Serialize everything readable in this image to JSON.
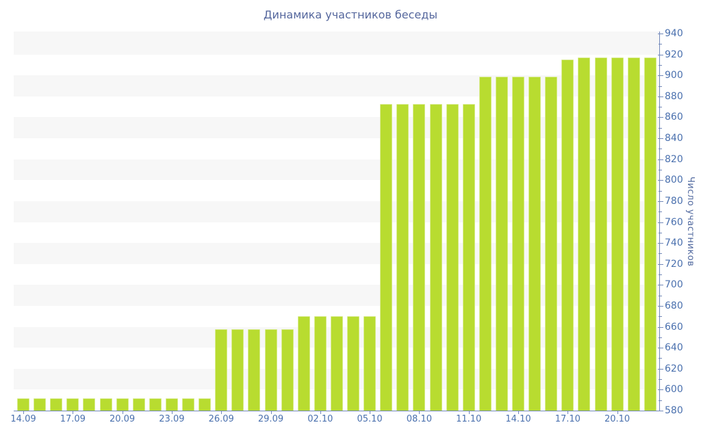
{
  "title": "Динамика участников беседы",
  "colors": {
    "bar_fill": "#b8dc30",
    "band": "#f7f7f7",
    "axis_line": "#7288b9",
    "tick_text": "#4a70ae",
    "title_text": "#55679d"
  },
  "chart_data": {
    "type": "bar",
    "title": "Динамика участников беседы",
    "xlabel": "",
    "ylabel": "Число участников",
    "ylim": [
      580,
      940
    ],
    "y_major_step": 20,
    "y_minor_step": 10,
    "grid": "horizontal-bands",
    "y_axis_position": "right",
    "legend": null,
    "categories": [
      "14.09",
      "15.09",
      "16.09",
      "17.09",
      "18.09",
      "19.09",
      "20.09",
      "21.09",
      "22.09",
      "23.09",
      "24.09",
      "25.09",
      "26.09",
      "27.09",
      "28.09",
      "29.09",
      "30.09",
      "01.10",
      "02.10",
      "03.10",
      "04.10",
      "05.10",
      "06.10",
      "07.10",
      "08.10",
      "09.10",
      "10.10",
      "11.10",
      "12.10",
      "13.10",
      "14.10",
      "15.10",
      "16.10",
      "17.10",
      "18.10",
      "19.10",
      "20.10",
      "21.10",
      "22.10"
    ],
    "values": [
      592,
      592,
      592,
      592,
      592,
      592,
      592,
      592,
      592,
      592,
      592,
      592,
      658,
      658,
      658,
      658,
      658,
      670,
      670,
      670,
      670,
      670,
      873,
      873,
      873,
      873,
      873,
      873,
      899,
      899,
      899,
      899,
      899,
      915,
      917,
      917,
      917,
      917,
      917
    ],
    "x_tick_labels": [
      "14.09",
      "17.09",
      "20.09",
      "23.09",
      "26.09",
      "29.09",
      "02.10",
      "05.10",
      "08.10",
      "11.10",
      "14.10",
      "17.10",
      "20.10"
    ],
    "x_label_every": 3
  }
}
